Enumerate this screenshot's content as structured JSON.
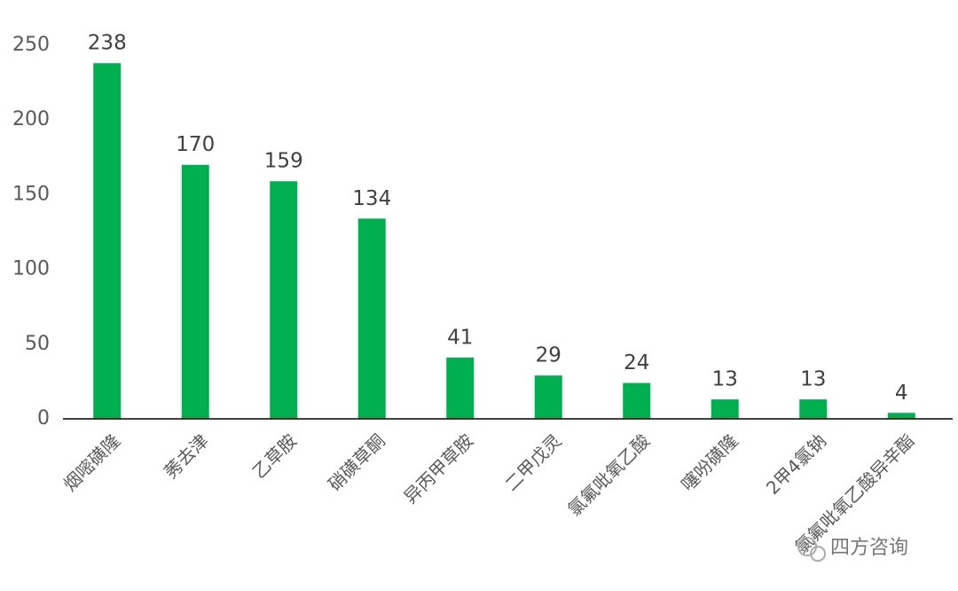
{
  "chart_data": {
    "type": "bar",
    "categories": [
      "烟嘧磺隆",
      "莠去津",
      "乙草胺",
      "硝磺草酮",
      "异丙甲草胺",
      "二甲戊灵",
      "氯氟吡氧乙酸",
      "噻吩磺隆",
      "2甲4氯钠",
      "氯氟吡氧乙酸异辛酯"
    ],
    "values": [
      238,
      170,
      159,
      134,
      41,
      29,
      24,
      13,
      13,
      4
    ],
    "color": "#00b050",
    "ylim": [
      0,
      250
    ],
    "yticks": [
      0,
      50,
      100,
      150,
      200,
      250
    ],
    "grid": false,
    "watermark": "四方咨询"
  }
}
